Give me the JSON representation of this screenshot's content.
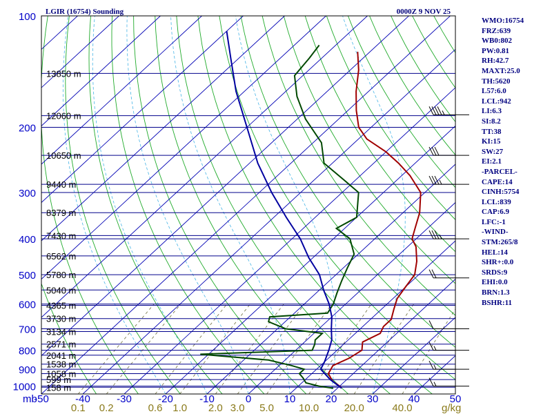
{
  "chart_data": {
    "type": "skew-t sounding",
    "title_left": "LGIR (16754) Sounding",
    "title_right": "0000Z  9 NOV 25",
    "pressure_unit_label": "mb",
    "mixing_ratio_unit_label": "g/kg",
    "pressure_ticks": [
      "100",
      "200",
      "300",
      "400",
      "500",
      "600",
      "700",
      "800",
      "900",
      "1000"
    ],
    "pressure_tick_values": [
      100,
      200,
      300,
      400,
      500,
      600,
      700,
      800,
      900,
      1000
    ],
    "pressure_range": [
      100,
      1050
    ],
    "temperature_range": [
      -50,
      50
    ],
    "skew_deg_per_lnp": 42,
    "temperature_ticks": [
      "-50",
      "-40",
      "-30",
      "-20",
      "-10",
      "0",
      "10",
      "20",
      "30",
      "40",
      "50"
    ],
    "temperature_tick_values": [
      -50,
      -40,
      -30,
      -20,
      -10,
      0,
      10,
      20,
      30,
      40,
      50
    ],
    "mixing_ratio_labels": [
      "0.1",
      "0.2",
      "0.6",
      "1.0",
      "2.0",
      "3.0",
      "5.0",
      "10.0",
      "20.0",
      "40.0"
    ],
    "mixing_ratio_values": [
      0.1,
      0.2,
      0.6,
      1.0,
      2.0,
      3.0,
      5.0,
      10.0,
      20.0,
      40.0
    ],
    "height_levels": [
      {
        "p": 143,
        "label": "13850 m"
      },
      {
        "p": 186,
        "label": "12060 m"
      },
      {
        "p": 238,
        "label": "10650 m"
      },
      {
        "p": 285,
        "label": "9440 m"
      },
      {
        "p": 340,
        "label": "8379 m"
      },
      {
        "p": 392,
        "label": "7430 m"
      },
      {
        "p": 445,
        "label": "6562 m"
      },
      {
        "p": 500,
        "label": "5780 m"
      },
      {
        "p": 550,
        "label": "5040 m"
      },
      {
        "p": 605,
        "label": "4365 m"
      },
      {
        "p": 657,
        "label": "3730 m"
      },
      {
        "p": 712,
        "label": "3134 m"
      },
      {
        "p": 770,
        "label": "2571 m"
      },
      {
        "p": 825,
        "label": "2041 m"
      },
      {
        "p": 872,
        "label": "1538 m"
      },
      {
        "p": 925,
        "label": "1058 m"
      },
      {
        "p": 960,
        "label": "599 m"
      },
      {
        "p": 1007,
        "label": "158 m"
      }
    ],
    "series": [
      {
        "name": "temperature",
        "color": "#a00000",
        "points": [
          [
            1013,
            21
          ],
          [
            1000,
            20
          ],
          [
            970,
            17
          ],
          [
            925,
            14
          ],
          [
            880,
            13
          ],
          [
            840,
            15
          ],
          [
            800,
            16
          ],
          [
            760,
            14
          ],
          [
            720,
            16
          ],
          [
            690,
            15
          ],
          [
            660,
            15
          ],
          [
            620,
            13
          ],
          [
            580,
            11
          ],
          [
            540,
            10
          ],
          [
            500,
            9
          ],
          [
            460,
            6
          ],
          [
            420,
            2
          ],
          [
            400,
            -1
          ],
          [
            375,
            -3
          ],
          [
            340,
            -6
          ],
          [
            300,
            -11
          ],
          [
            270,
            -18
          ],
          [
            250,
            -24
          ],
          [
            233,
            -30
          ],
          [
            215,
            -38
          ],
          [
            200,
            -43
          ],
          [
            180,
            -48
          ],
          [
            160,
            -53
          ],
          [
            140,
            -58
          ],
          [
            125,
            -63
          ]
        ]
      },
      {
        "name": "dewpoint",
        "color": "#004800",
        "points": [
          [
            1013,
            19
          ],
          [
            1000,
            15
          ],
          [
            980,
            11
          ],
          [
            950,
            9
          ],
          [
            925,
            7
          ],
          [
            900,
            7
          ],
          [
            880,
            3
          ],
          [
            850,
            -4
          ],
          [
            820,
            -22
          ],
          [
            800,
            4
          ],
          [
            770,
            3
          ],
          [
            750,
            2
          ],
          [
            720,
            2
          ],
          [
            700,
            -8
          ],
          [
            670,
            -14
          ],
          [
            650,
            -15
          ],
          [
            635,
            -2
          ],
          [
            600,
            -3
          ],
          [
            560,
            -5
          ],
          [
            520,
            -7
          ],
          [
            480,
            -9
          ],
          [
            440,
            -11
          ],
          [
            400,
            -16
          ],
          [
            375,
            -22
          ],
          [
            350,
            -20
          ],
          [
            300,
            -26
          ],
          [
            280,
            -32
          ],
          [
            250,
            -42
          ],
          [
            220,
            -48
          ],
          [
            190,
            -58
          ],
          [
            165,
            -66
          ],
          [
            145,
            -72
          ],
          [
            130,
            -73
          ],
          [
            120,
            -74
          ]
        ]
      },
      {
        "name": "parcel",
        "color": "#0000a0",
        "points": [
          [
            1013,
            21
          ],
          [
            960,
            16
          ],
          [
            900,
            11
          ],
          [
            860,
            10
          ],
          [
            800,
            8
          ],
          [
            750,
            6
          ],
          [
            700,
            3
          ],
          [
            650,
            0
          ],
          [
            600,
            -4
          ],
          [
            550,
            -9
          ],
          [
            500,
            -14
          ],
          [
            450,
            -21
          ],
          [
            400,
            -28
          ],
          [
            350,
            -37
          ],
          [
            300,
            -47
          ],
          [
            250,
            -58
          ],
          [
            200,
            -70
          ],
          [
            160,
            -82
          ],
          [
            130,
            -92
          ],
          [
            110,
            -100
          ]
        ]
      }
    ],
    "wind_barbs": [
      {
        "p": 185,
        "speed_kt": 35
      },
      {
        "p": 238,
        "speed_kt": 30
      },
      {
        "p": 285,
        "speed_kt": 25
      },
      {
        "p": 400,
        "speed_kt": 25
      },
      {
        "p": 510,
        "speed_kt": 20
      },
      {
        "p": 700,
        "speed_kt": 10
      },
      {
        "p": 800,
        "speed_kt": 5
      },
      {
        "p": 900,
        "speed_kt": 5
      },
      {
        "p": 1000,
        "speed_kt": 5
      }
    ]
  },
  "indices": [
    "WMO:16754",
    "FRZ:639",
    "WB0:802",
    "PW:0.81",
    "RH:42.7",
    "MAXT:25.0",
    "TH:5620",
    "L57:6.0",
    "LCL:942",
    "LI:6.3",
    "SI:8.2",
    "TT:38",
    "KI:15",
    "SW:27",
    "EI:2.1",
    "-PARCEL-",
    "CAPE:14",
    "CINH:5754",
    "LCL:839",
    "CAP:6.9",
    "LFC:-1",
    "-WIND-",
    "STM:265/8",
    "HEL:14",
    "SHR+:0.0",
    "SRDS:9",
    "EHI:0.0",
    "BRN:1.3",
    "BSHR:11"
  ],
  "colors": {
    "frame": "#000000",
    "isobar": "#00008b",
    "isotherm": "#0000b4",
    "dry_adiabat": "#1faa2a",
    "moist_adiabat": "#46b4e6",
    "mixing_ratio": "#6b6b3a",
    "temperature": "#a00000",
    "dewpoint": "#004800",
    "parcel": "#0000a0",
    "barb": "#000000"
  }
}
